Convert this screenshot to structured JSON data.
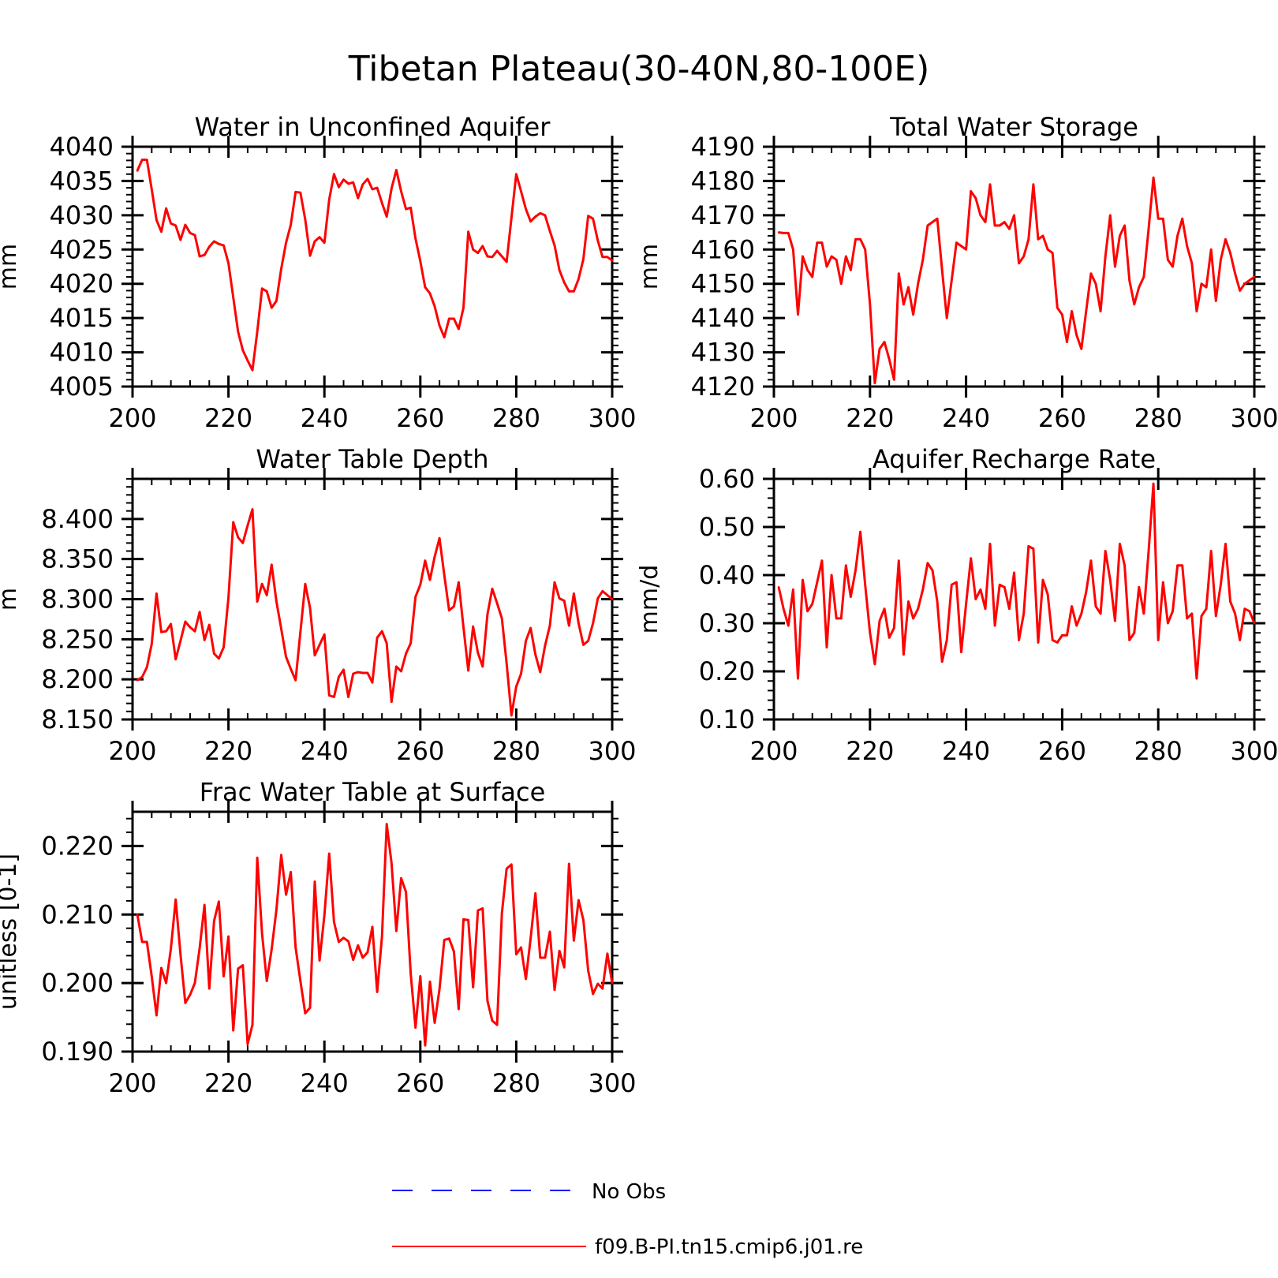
{
  "figure": {
    "title": "Tibetan Plateau(30-40N,80-100E)"
  },
  "legend": {
    "items": [
      {
        "label": "No Obs",
        "color": "#0000ff",
        "style": "dashed"
      },
      {
        "label": "f09.B-PI.tn15.cmip6.j01.re",
        "color": "#ff0000",
        "style": "solid"
      }
    ]
  },
  "chart_data": [
    {
      "type": "line",
      "title": "Water in Unconfined Aquifer",
      "ylabel": "mm",
      "xlim": [
        200,
        300
      ],
      "ylim": [
        4005,
        4040
      ],
      "x_ticks": [
        200,
        220,
        240,
        260,
        280,
        300
      ],
      "y_ticks": [
        4005,
        4010,
        4015,
        4020,
        4025,
        4030,
        4035,
        4040
      ],
      "y_tick_labels": [
        "4005",
        "4010",
        "4015",
        "4020",
        "4025",
        "4030",
        "4035",
        "4040"
      ],
      "series": [
        {
          "color": "#ff0000",
          "x_start": 201,
          "values": [
            4036.5,
            4038.1,
            4038.1,
            4033.8,
            4029.3,
            4027.6,
            4031.0,
            4028.8,
            4028.5,
            4026.4,
            4028.6,
            4027.4,
            4027.1,
            4024.0,
            4024.2,
            4025.4,
            4026.2,
            4025.8,
            4025.6,
            4023.0,
            4018.0,
            4013.0,
            4010.3,
            4008.8,
            4007.4,
            4013.0,
            4019.3,
            4018.9,
            4016.5,
            4017.5,
            4022.2,
            4026.0,
            4028.6,
            4033.4,
            4033.3,
            4029.4,
            4024.1,
            4026.2,
            4026.8,
            4026.0,
            4032.3,
            4036.0,
            4034.1,
            4035.2,
            4034.6,
            4034.8,
            4032.5,
            4034.5,
            4035.3,
            4033.8,
            4034.0,
            4031.8,
            4029.8,
            4033.9,
            4036.6,
            4033.5,
            4030.9,
            4031.1,
            4026.6,
            4023.3,
            4019.5,
            4018.6,
            4016.7,
            4013.9,
            4012.2,
            4014.9,
            4014.9,
            4013.4,
            4016.5,
            4027.6,
            4025.0,
            4024.5,
            4025.5,
            4024.0,
            4023.9,
            4024.8,
            4024.0,
            4023.2,
            4029.6,
            4036.0,
            4033.5,
            4030.9,
            4029.1,
            4029.8,
            4030.3,
            4030.0,
            4027.7,
            4025.6,
            4022.0,
            4020.2,
            4018.9,
            4018.9,
            4020.7,
            4023.6,
            4029.9,
            4029.5,
            4026.3,
            4023.9,
            4023.9,
            4023.4
          ]
        }
      ]
    },
    {
      "type": "line",
      "title": "Total Water Storage",
      "ylabel": "mm",
      "xlim": [
        200,
        300
      ],
      "ylim": [
        4120,
        4190
      ],
      "x_ticks": [
        200,
        220,
        240,
        260,
        280,
        300
      ],
      "y_ticks": [
        4120,
        4130,
        4140,
        4150,
        4160,
        4170,
        4180,
        4190
      ],
      "y_tick_labels": [
        "4120",
        "4130",
        "4140",
        "4150",
        "4160",
        "4170",
        "4180",
        "4190"
      ],
      "series": [
        {
          "color": "#ff0000",
          "x_start": 201,
          "values": [
            4165,
            4164.8,
            4164.8,
            4160,
            4141,
            4158,
            4154,
            4152,
            4162,
            4162,
            4155,
            4158,
            4157,
            4150,
            4158,
            4154,
            4163,
            4163,
            4160,
            4144,
            4121,
            4131,
            4133,
            4128,
            4122,
            4153,
            4144,
            4149,
            4141,
            4150,
            4157,
            4167,
            4168,
            4169,
            4154,
            4140,
            4151,
            4162,
            4161,
            4160,
            4177,
            4175,
            4170,
            4168,
            4179,
            4167,
            4167,
            4168,
            4166,
            4170,
            4156,
            4158,
            4163,
            4179,
            4163,
            4164,
            4160,
            4159,
            4143,
            4141,
            4133,
            4142,
            4135,
            4131,
            4142,
            4153,
            4150,
            4142,
            4158,
            4170,
            4155,
            4164,
            4167,
            4151,
            4144,
            4149,
            4152,
            4166,
            4181,
            4169,
            4169,
            4157,
            4155,
            4164,
            4169,
            4161,
            4156,
            4142,
            4150,
            4149,
            4160,
            4145,
            4157,
            4163,
            4159,
            4153,
            4148,
            4150,
            4151,
            4152
          ]
        }
      ]
    },
    {
      "type": "line",
      "title": "Water Table Depth",
      "ylabel": "m",
      "xlim": [
        200,
        300
      ],
      "ylim": [
        8.15,
        8.45
      ],
      "x_ticks": [
        200,
        220,
        240,
        260,
        280,
        300
      ],
      "y_ticks": [
        8.15,
        8.2,
        8.25,
        8.3,
        8.35,
        8.4
      ],
      "y_tick_labels": [
        "8.150",
        "8.200",
        "8.250",
        "8.300",
        "8.350",
        "8.400"
      ],
      "series": [
        {
          "color": "#ff0000",
          "x_start": 201,
          "values": [
            8.199,
            8.203,
            8.215,
            8.244,
            8.307,
            8.259,
            8.26,
            8.269,
            8.225,
            8.248,
            8.272,
            8.265,
            8.26,
            8.284,
            8.249,
            8.268,
            8.232,
            8.226,
            8.24,
            8.302,
            8.396,
            8.377,
            8.37,
            8.392,
            8.412,
            8.297,
            8.319,
            8.305,
            8.343,
            8.297,
            8.263,
            8.228,
            8.213,
            8.199,
            8.259,
            8.319,
            8.289,
            8.23,
            8.243,
            8.256,
            8.18,
            8.178,
            8.203,
            8.212,
            8.178,
            8.207,
            8.209,
            8.208,
            8.208,
            8.196,
            8.252,
            8.26,
            8.245,
            8.172,
            8.216,
            8.21,
            8.232,
            8.245,
            8.303,
            8.318,
            8.348,
            8.324,
            8.353,
            8.376,
            8.33,
            8.286,
            8.291,
            8.321,
            8.265,
            8.211,
            8.266,
            8.233,
            8.216,
            8.281,
            8.313,
            8.295,
            8.276,
            8.22,
            8.155,
            8.191,
            8.207,
            8.248,
            8.264,
            8.231,
            8.209,
            8.242,
            8.267,
            8.321,
            8.301,
            8.298,
            8.267,
            8.307,
            8.27,
            8.243,
            8.248,
            8.27,
            8.301,
            8.31,
            8.305,
            8.3
          ]
        }
      ]
    },
    {
      "type": "line",
      "title": "Aquifer Recharge Rate",
      "ylabel": "mm/d",
      "xlim": [
        200,
        300
      ],
      "ylim": [
        0.1,
        0.6
      ],
      "x_ticks": [
        200,
        220,
        240,
        260,
        280,
        300
      ],
      "y_ticks": [
        0.1,
        0.2,
        0.3,
        0.4,
        0.5,
        0.6
      ],
      "y_tick_labels": [
        "0.10",
        "0.20",
        "0.30",
        "0.40",
        "0.50",
        "0.60"
      ],
      "series": [
        {
          "color": "#ff0000",
          "x_start": 201,
          "values": [
            0.375,
            0.33,
            0.295,
            0.37,
            0.185,
            0.39,
            0.325,
            0.34,
            0.385,
            0.43,
            0.25,
            0.4,
            0.31,
            0.31,
            0.42,
            0.355,
            0.41,
            0.49,
            0.38,
            0.28,
            0.215,
            0.305,
            0.33,
            0.27,
            0.29,
            0.43,
            0.235,
            0.345,
            0.31,
            0.33,
            0.37,
            0.425,
            0.41,
            0.345,
            0.22,
            0.265,
            0.38,
            0.385,
            0.24,
            0.34,
            0.435,
            0.35,
            0.37,
            0.33,
            0.465,
            0.295,
            0.38,
            0.375,
            0.33,
            0.405,
            0.265,
            0.32,
            0.46,
            0.455,
            0.26,
            0.39,
            0.36,
            0.265,
            0.26,
            0.275,
            0.275,
            0.335,
            0.295,
            0.32,
            0.365,
            0.43,
            0.335,
            0.32,
            0.45,
            0.39,
            0.305,
            0.465,
            0.42,
            0.265,
            0.28,
            0.375,
            0.32,
            0.45,
            0.59,
            0.265,
            0.385,
            0.3,
            0.325,
            0.42,
            0.42,
            0.31,
            0.32,
            0.185,
            0.315,
            0.33,
            0.45,
            0.315,
            0.38,
            0.465,
            0.345,
            0.32,
            0.265,
            0.33,
            0.325,
            0.3
          ]
        }
      ]
    },
    {
      "type": "line",
      "title": "Frac Water Table at Surface",
      "ylabel": "unitless [0-1]",
      "xlim": [
        200,
        300
      ],
      "ylim": [
        0.19,
        0.225
      ],
      "x_ticks": [
        200,
        220,
        240,
        260,
        280,
        300
      ],
      "y_ticks": [
        0.19,
        0.2,
        0.21,
        0.22
      ],
      "y_tick_labels": [
        "0.190",
        "0.200",
        "0.210",
        "0.220"
      ],
      "series": [
        {
          "color": "#ff0000",
          "x_start": 201,
          "values": [
            0.21,
            0.206,
            0.206,
            0.201,
            0.1953,
            0.2022,
            0.2,
            0.205,
            0.2122,
            0.2042,
            0.1971,
            0.1983,
            0.2,
            0.2051,
            0.2114,
            0.1992,
            0.2091,
            0.2119,
            0.201,
            0.2068,
            0.1931,
            0.2021,
            0.2026,
            0.1911,
            0.1939,
            0.2183,
            0.2072,
            0.2003,
            0.2049,
            0.2107,
            0.2187,
            0.2129,
            0.2162,
            0.2052,
            0.2003,
            0.1956,
            0.1964,
            0.2148,
            0.2033,
            0.2099,
            0.2189,
            0.2089,
            0.206,
            0.2066,
            0.2061,
            0.2034,
            0.2055,
            0.2037,
            0.2045,
            0.2082,
            0.1987,
            0.2068,
            0.2232,
            0.2175,
            0.2076,
            0.2153,
            0.2133,
            0.2014,
            0.1935,
            0.201,
            0.1909,
            0.2002,
            0.1942,
            0.1991,
            0.2063,
            0.2065,
            0.2046,
            0.1962,
            0.2093,
            0.2092,
            0.1994,
            0.2106,
            0.2109,
            0.1974,
            0.1945,
            0.1939,
            0.2102,
            0.2167,
            0.2173,
            0.2042,
            0.2052,
            0.2006,
            0.2065,
            0.2131,
            0.2037,
            0.2037,
            0.2075,
            0.199,
            0.2047,
            0.2023,
            0.2174,
            0.2062,
            0.2121,
            0.2092,
            0.2018,
            0.1984,
            0.1999,
            0.1992,
            0.2043,
            0.2
          ]
        }
      ]
    }
  ]
}
